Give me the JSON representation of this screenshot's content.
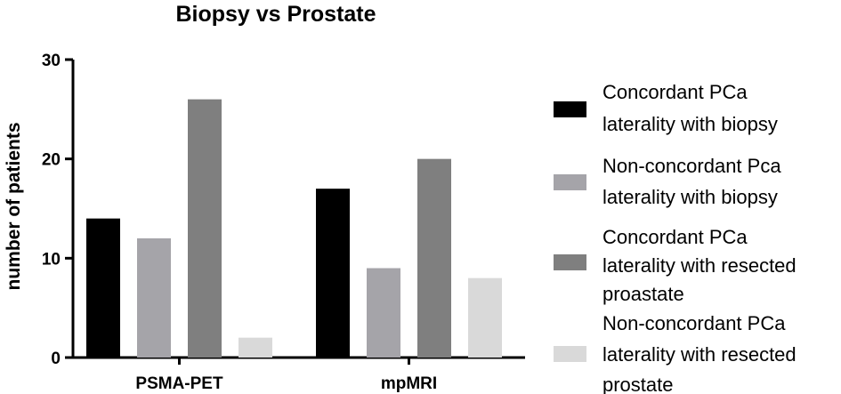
{
  "chart_data": {
    "type": "bar",
    "title": "Biopsy vs Prostate",
    "xlabel": "",
    "ylabel": "number of patients",
    "ylim": [
      0,
      30
    ],
    "yticks": [
      "0",
      "10",
      "20",
      "30"
    ],
    "categories": [
      "PSMA-PET",
      "mpMRI"
    ],
    "series": [
      {
        "name": "Concordant PCa laterality with biopsy",
        "legend_lines": [
          "Concordant PCa",
          "laterality with biopsy"
        ],
        "color": "#000000",
        "values": [
          14,
          17
        ]
      },
      {
        "name": "Non-concordant Pca laterality with biopsy",
        "legend_lines": [
          "Non-concordant Pca",
          "laterality with biopsy"
        ],
        "color": "#a5a4a9",
        "values": [
          12,
          9
        ]
      },
      {
        "name": "Concordant PCa laterality with resected proastate",
        "legend_lines": [
          "Concordant PCa",
          "laterality with resected",
          "proastate"
        ],
        "color": "#7f7f7f",
        "values": [
          26,
          20
        ]
      },
      {
        "name": "Non-concordant PCa laterality with resected prostate",
        "legend_lines": [
          "Non-concordant PCa",
          "laterality with resected",
          "prostate"
        ],
        "color": "#d9d9d9",
        "values": [
          2,
          8
        ]
      }
    ],
    "grid": false,
    "legend_position": "right"
  }
}
